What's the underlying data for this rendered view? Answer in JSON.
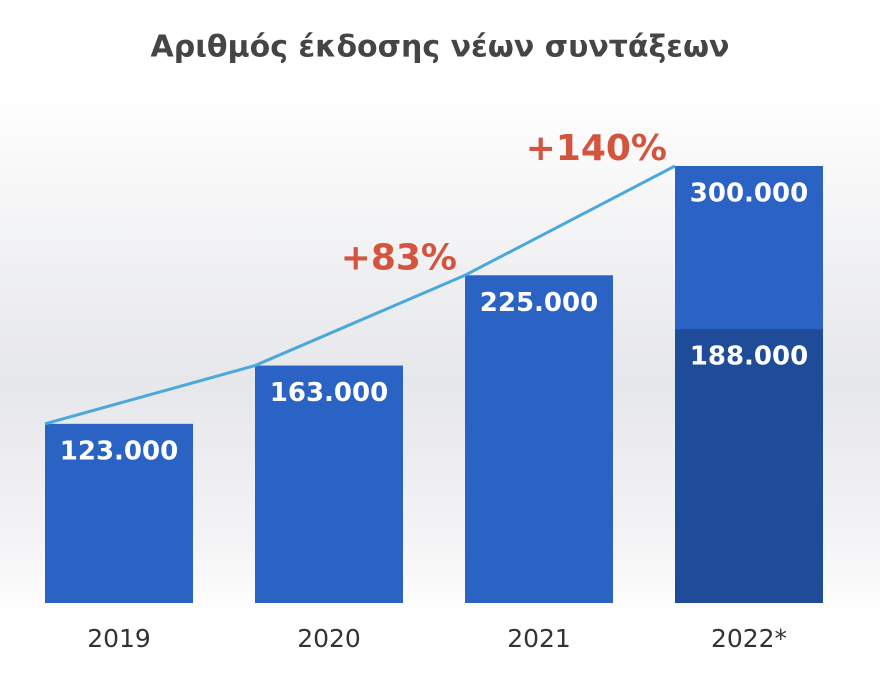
{
  "chart_data": {
    "type": "bar",
    "title": "Αριθμός έκδοσης νέων συντάξεων",
    "categories": [
      "2019",
      "2020",
      "2021",
      "2022*"
    ],
    "series": [
      {
        "values": [
          123000,
          163000,
          225000,
          300000
        ],
        "value_labels": [
          "123.000",
          "163.000",
          "225.000",
          "300.000"
        ],
        "color": "#2b63c4"
      },
      {
        "values": [
          null,
          null,
          null,
          188000
        ],
        "value_labels": [
          null,
          null,
          null,
          "188.000"
        ],
        "color": "#1f4c98"
      }
    ],
    "line_color": "#4aa8dc",
    "annotations": [
      {
        "text": "+83%",
        "category": 2
      },
      {
        "text": "+140%",
        "category": 3
      }
    ],
    "annotation_color": "#d4553f"
  }
}
